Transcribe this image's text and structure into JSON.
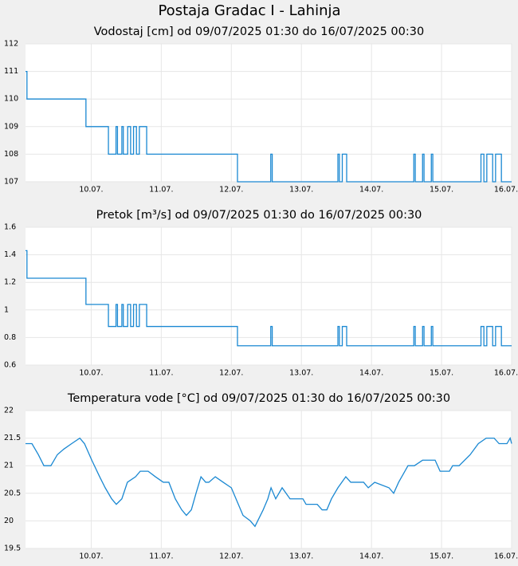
{
  "title": "Postaja Gradac I - Lahinja",
  "chart_data": [
    {
      "type": "line",
      "title": "Vodostaj [cm] od 09/07/2025 01:30 do 16/07/2025 00:30",
      "x": [
        0,
        0.5,
        0.5,
        20.7,
        20.7,
        28.4,
        28.4,
        31,
        31,
        31.5,
        31.5,
        33,
        33,
        33.5,
        33.5,
        35,
        35,
        36,
        36,
        37,
        37,
        38,
        38,
        39,
        39,
        41.5,
        41.5,
        72.6,
        72.6,
        84,
        84,
        84.5,
        84.5,
        107,
        107,
        107.5,
        107.5,
        108.5,
        108.5,
        110,
        110,
        133,
        133,
        133.5,
        133.5,
        136,
        136,
        136.5,
        136.5,
        139,
        139,
        139.5,
        139.5,
        156,
        156,
        157,
        157,
        158,
        158,
        160,
        160,
        161,
        161,
        163,
        163,
        166.5
      ],
      "series": [
        {
          "color": "#1a88d2",
          "values": [
            111,
            111,
            110,
            110,
            109,
            109,
            108,
            108,
            109,
            109,
            108,
            108,
            109,
            109,
            108,
            108,
            109,
            109,
            108,
            108,
            109,
            109,
            108,
            108,
            109,
            109,
            108,
            108,
            107,
            107,
            108,
            108,
            107,
            107,
            108,
            108,
            107,
            107,
            108,
            108,
            107,
            107,
            108,
            108,
            107,
            107,
            108,
            108,
            107,
            107,
            108,
            108,
            107,
            107,
            108,
            108,
            107,
            107,
            108,
            108,
            107,
            107,
            108,
            108,
            107,
            107
          ]
        }
      ],
      "xlim": [
        0,
        166.5
      ],
      "xticks": [
        {
          "value": 22.5,
          "label": "10.07."
        },
        {
          "value": 46.5,
          "label": "11.07."
        },
        {
          "value": 70.5,
          "label": "12.07."
        },
        {
          "value": 94.5,
          "label": "13.07."
        },
        {
          "value": 118.5,
          "label": "14.07."
        },
        {
          "value": 142.5,
          "label": "15.07."
        },
        {
          "value": 166.5,
          "label": "16.07."
        }
      ],
      "ylim": [
        107,
        112
      ],
      "yticks": [
        107,
        108,
        109,
        110,
        111,
        112
      ],
      "grid": true
    },
    {
      "type": "line",
      "title": "Pretok [m³/s] od 09/07/2025 01:30 do 16/07/2025 00:30",
      "x": [
        0,
        0.5,
        0.5,
        20.7,
        20.7,
        28.4,
        28.4,
        31,
        31,
        31.5,
        31.5,
        33,
        33,
        33.5,
        33.5,
        35,
        35,
        36,
        36,
        37,
        37,
        38,
        38,
        39,
        39,
        41.5,
        41.5,
        72.6,
        72.6,
        84,
        84,
        84.5,
        84.5,
        107,
        107,
        107.5,
        107.5,
        108.5,
        108.5,
        110,
        110,
        133,
        133,
        133.5,
        133.5,
        136,
        136,
        136.5,
        136.5,
        139,
        139,
        139.5,
        139.5,
        156,
        156,
        157,
        157,
        158,
        158,
        160,
        160,
        161,
        161,
        163,
        163,
        166.5
      ],
      "series": [
        {
          "color": "#1a88d2",
          "values": [
            1.43,
            1.43,
            1.23,
            1.23,
            1.04,
            1.04,
            0.88,
            0.88,
            1.04,
            1.04,
            0.88,
            0.88,
            1.04,
            1.04,
            0.88,
            0.88,
            1.04,
            1.04,
            0.88,
            0.88,
            1.04,
            1.04,
            0.88,
            0.88,
            1.04,
            1.04,
            0.88,
            0.88,
            0.74,
            0.74,
            0.88,
            0.88,
            0.74,
            0.74,
            0.88,
            0.88,
            0.74,
            0.74,
            0.88,
            0.88,
            0.74,
            0.74,
            0.88,
            0.88,
            0.74,
            0.74,
            0.88,
            0.88,
            0.74,
            0.74,
            0.88,
            0.88,
            0.74,
            0.74,
            0.88,
            0.88,
            0.74,
            0.74,
            0.88,
            0.88,
            0.74,
            0.74,
            0.88,
            0.88,
            0.74,
            0.74
          ]
        }
      ],
      "xlim": [
        0,
        166.5
      ],
      "xticks": [
        {
          "value": 22.5,
          "label": "10.07."
        },
        {
          "value": 46.5,
          "label": "11.07."
        },
        {
          "value": 70.5,
          "label": "12.07."
        },
        {
          "value": 94.5,
          "label": "13.07."
        },
        {
          "value": 118.5,
          "label": "14.07."
        },
        {
          "value": 142.5,
          "label": "15.07."
        },
        {
          "value": 166.5,
          "label": "16.07."
        }
      ],
      "ylim": [
        0.6,
        1.6
      ],
      "yticks": [
        0.6,
        0.8,
        1,
        1.2,
        1.4,
        1.6
      ],
      "grid": true
    },
    {
      "type": "line",
      "title": "Temperatura vode [°C] od 09/07/2025 01:30 do 16/07/2025 00:30",
      "x": [
        0,
        2.2,
        4.4,
        6.3,
        8.7,
        10.9,
        13.1,
        15.8,
        18.6,
        20.2,
        22.7,
        25.4,
        27.3,
        29.5,
        31.1,
        33.0,
        34.9,
        37.7,
        39.3,
        42.0,
        44.5,
        47.2,
        49.1,
        51.3,
        53.5,
        55.1,
        56.8,
        58.4,
        60.1,
        61.7,
        62.8,
        65.0,
        67.7,
        70.5,
        72.1,
        74.5,
        77.0,
        78.6,
        81.4,
        83.0,
        84.1,
        85.7,
        87.9,
        90.6,
        95.0,
        96.1,
        99.9,
        101.6,
        103.2,
        104.8,
        107.0,
        109.7,
        111.4,
        115.8,
        117.4,
        119.6,
        124.5,
        126.1,
        127.8,
        131.0,
        133.2,
        136.0,
        140.3,
        142.0,
        145.2,
        146.3,
        148.5,
        152.3,
        155.1,
        157.8,
        160.5,
        162.2,
        164.9,
        166.0,
        166.5
      ],
      "series": [
        {
          "color": "#1a88d2",
          "values": [
            21.4,
            21.4,
            21.2,
            21.0,
            21.0,
            21.2,
            21.3,
            21.4,
            21.5,
            21.4,
            21.1,
            20.8,
            20.6,
            20.4,
            20.3,
            20.4,
            20.7,
            20.8,
            20.9,
            20.9,
            20.8,
            20.7,
            20.7,
            20.4,
            20.2,
            20.1,
            20.2,
            20.5,
            20.8,
            20.7,
            20.7,
            20.8,
            20.7,
            20.6,
            20.4,
            20.1,
            20.0,
            19.9,
            20.2,
            20.4,
            20.6,
            20.4,
            20.6,
            20.4,
            20.4,
            20.3,
            20.3,
            20.2,
            20.2,
            20.4,
            20.6,
            20.8,
            20.7,
            20.7,
            20.6,
            20.7,
            20.6,
            20.5,
            20.7,
            21.0,
            21.0,
            21.1,
            21.1,
            20.9,
            20.9,
            21.0,
            21.0,
            21.2,
            21.4,
            21.5,
            21.5,
            21.4,
            21.4,
            21.5,
            21.4
          ]
        }
      ],
      "xlim": [
        0,
        166.5
      ],
      "xticks": [
        {
          "value": 22.5,
          "label": "10.07."
        },
        {
          "value": 46.5,
          "label": "11.07."
        },
        {
          "value": 70.5,
          "label": "12.07."
        },
        {
          "value": 94.5,
          "label": "13.07."
        },
        {
          "value": 118.5,
          "label": "14.07."
        },
        {
          "value": 142.5,
          "label": "15.07."
        },
        {
          "value": 166.5,
          "label": "16.07."
        }
      ],
      "ylim": [
        19.5,
        22
      ],
      "yticks": [
        19.5,
        20,
        20.5,
        21,
        21.5,
        22
      ],
      "grid": true
    }
  ]
}
